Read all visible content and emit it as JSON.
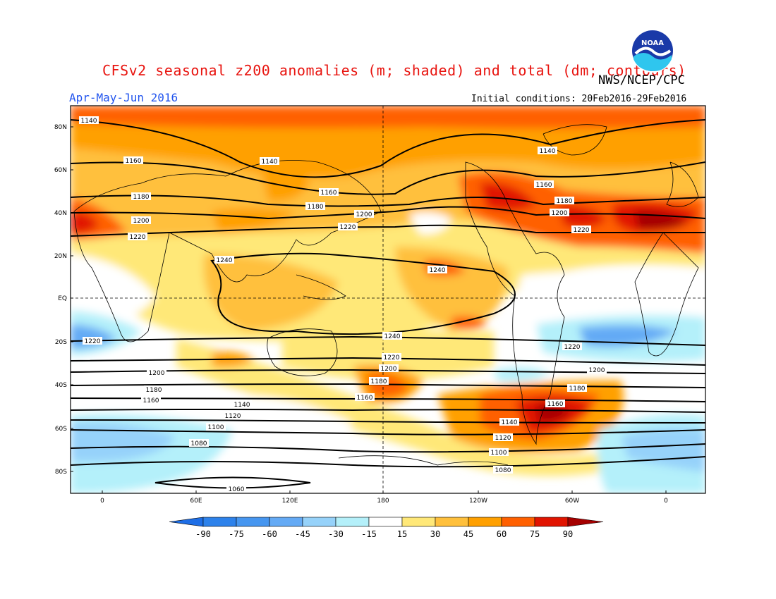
{
  "header": {
    "title": "CFSv2 seasonal z200 anomalies (m; shaded) and total (dm; contours)",
    "agency": "NWS/NCEP/CPC",
    "season": "Apr-May-Jun 2016",
    "initial_conditions": "Initial conditions: 20Feb2016-29Feb2016",
    "logo_text": "NOAA"
  },
  "map": {
    "lat_labels": [
      "80N",
      "60N",
      "40N",
      "20N",
      "EQ",
      "20S",
      "40S",
      "60S",
      "80S"
    ],
    "lon_labels": [
      "0",
      "60E",
      "120E",
      "180",
      "120W",
      "60W",
      "0"
    ],
    "contour_labels": [
      {
        "text": "1140",
        "id": "c1140a"
      },
      {
        "text": "1140",
        "id": "c1140b"
      },
      {
        "text": "1140",
        "id": "c1140c"
      },
      {
        "text": "1160",
        "id": "c1160a"
      },
      {
        "text": "1160",
        "id": "c1160b"
      },
      {
        "text": "1160",
        "id": "c1160c"
      },
      {
        "text": "1180",
        "id": "c1180a"
      },
      {
        "text": "1180",
        "id": "c1180b"
      },
      {
        "text": "1180",
        "id": "c1180c"
      },
      {
        "text": "1200",
        "id": "c1200a"
      },
      {
        "text": "1200",
        "id": "c1200b"
      },
      {
        "text": "1200",
        "id": "c1200c"
      },
      {
        "text": "1220",
        "id": "c1220a"
      },
      {
        "text": "1220",
        "id": "c1220b"
      },
      {
        "text": "1220",
        "id": "c1220c"
      },
      {
        "text": "1240",
        "id": "c1240a"
      },
      {
        "text": "1240",
        "id": "c1240b"
      },
      {
        "text": "1240",
        "id": "c1240c"
      },
      {
        "text": "1220",
        "id": "c1220d"
      },
      {
        "text": "1220",
        "id": "c1220e"
      },
      {
        "text": "1220",
        "id": "c1220f"
      },
      {
        "text": "1200",
        "id": "c1200d"
      },
      {
        "text": "1200",
        "id": "c1200e"
      },
      {
        "text": "1200",
        "id": "c1200f"
      },
      {
        "text": "1180",
        "id": "c1180d"
      },
      {
        "text": "1180",
        "id": "c1180e"
      },
      {
        "text": "1180",
        "id": "c1180f"
      },
      {
        "text": "1160",
        "id": "c1160d"
      },
      {
        "text": "1160",
        "id": "c1160e"
      },
      {
        "text": "1160",
        "id": "c1160f"
      },
      {
        "text": "1140",
        "id": "c1140d"
      },
      {
        "text": "1140",
        "id": "c1140e"
      },
      {
        "text": "1120",
        "id": "c1120a"
      },
      {
        "text": "1120",
        "id": "c1120b"
      },
      {
        "text": "1100",
        "id": "c1100a"
      },
      {
        "text": "1100",
        "id": "c1100b"
      },
      {
        "text": "1080",
        "id": "c1080a"
      },
      {
        "text": "1080",
        "id": "c1080b"
      },
      {
        "text": "1060",
        "id": "c1060a"
      }
    ]
  },
  "colorbar": {
    "labels": [
      "-90",
      "-75",
      "-60",
      "-45",
      "-30",
      "-15",
      "15",
      "30",
      "45",
      "60",
      "75",
      "90"
    ],
    "colors": [
      "#1e6ee6",
      "#2d82eb",
      "#4696f0",
      "#64aaf5",
      "#96d2fa",
      "#b4f0fa",
      "#ffffff",
      "#ffe878",
      "#ffc03c",
      "#ffa000",
      "#ff6000",
      "#e11400",
      "#a50000"
    ]
  }
}
